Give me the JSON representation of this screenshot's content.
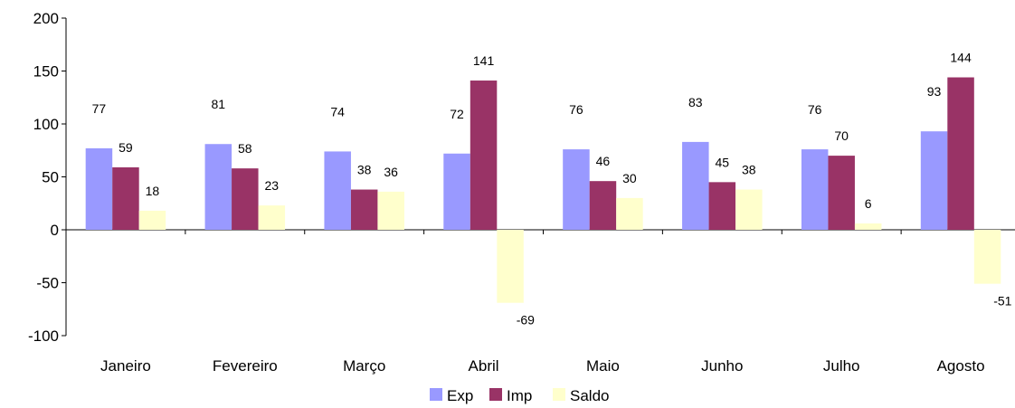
{
  "chart_data": {
    "type": "bar",
    "categories": [
      "Janeiro",
      "Fevereiro",
      "Março",
      "Abril",
      "Maio",
      "Junho",
      "Julho",
      "Agosto"
    ],
    "series": [
      {
        "name": "Exp",
        "color": "#9999ff",
        "values": [
          77,
          81,
          74,
          72,
          76,
          83,
          76,
          93
        ]
      },
      {
        "name": "Imp",
        "color": "#993366",
        "values": [
          59,
          58,
          38,
          141,
          46,
          45,
          70,
          144
        ]
      },
      {
        "name": "Saldo",
        "color": "#ffffcc",
        "values": [
          18,
          23,
          36,
          -69,
          30,
          38,
          6,
          -51
        ]
      }
    ],
    "ylim": [
      -100,
      200
    ],
    "yticks": [
      -100,
      -50,
      0,
      50,
      100,
      150,
      200
    ],
    "title": "",
    "xlabel": "",
    "ylabel": "",
    "grid": false,
    "legend_position": "bottom"
  }
}
